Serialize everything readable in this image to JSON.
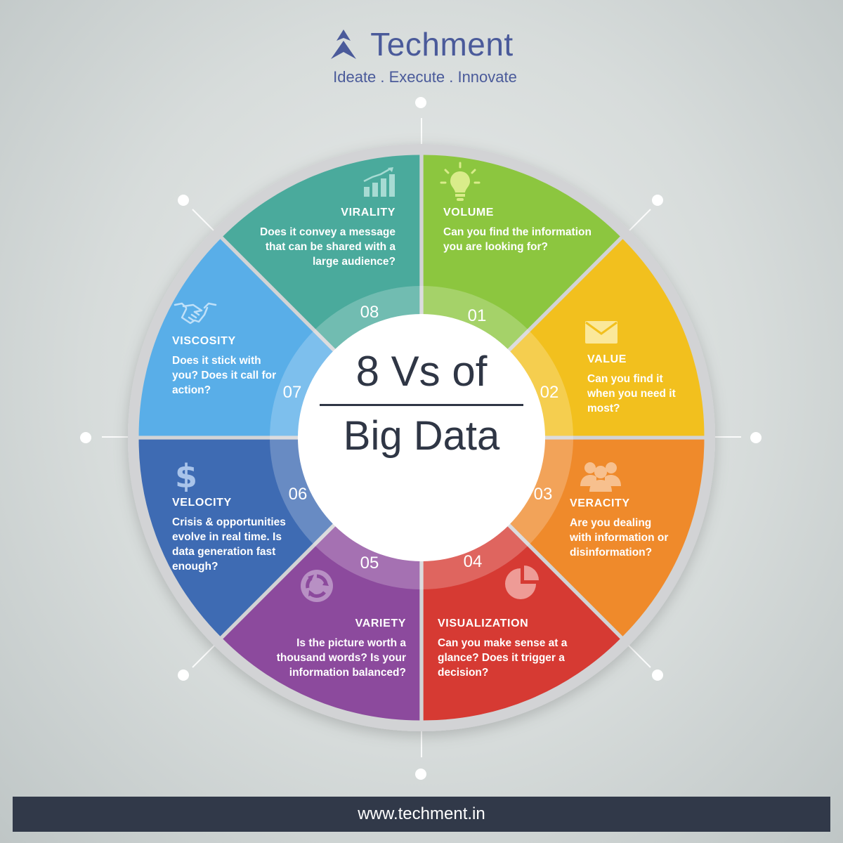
{
  "brand": {
    "name": "Techment",
    "tagline": "Ideate . Execute . Innovate"
  },
  "center": {
    "line1": "8 Vs of",
    "line2": "Big Data"
  },
  "segments": [
    {
      "number": "01",
      "title": "VOLUME",
      "description": "Can you find the information you are looking for?",
      "color": "#8cc63f",
      "icon": "lightbulb-icon"
    },
    {
      "number": "02",
      "title": "VALUE",
      "description": "Can you find it when you need it most?",
      "color": "#f2c01e",
      "icon": "envelope-icon"
    },
    {
      "number": "03",
      "title": "VERACITY",
      "description": "Are you dealing with information or disinformation?",
      "color": "#ef8a2b",
      "icon": "people-icon"
    },
    {
      "number": "04",
      "title": "VISUALIZATION",
      "description": "Can you make sense at a glance? Does it trigger a decision?",
      "color": "#d63a33",
      "icon": "pie-chart-icon"
    },
    {
      "number": "05",
      "title": "VARIETY",
      "description": "Is the picture worth a thousand words? Is your information balanced?",
      "color": "#8c4a9d",
      "icon": "recycle-icon"
    },
    {
      "number": "06",
      "title": "VELOCITY",
      "description": "Crisis & opportunities evolve in real time. Is data generation fast enough?",
      "color": "#3e6bb3",
      "icon": "dollar-icon"
    },
    {
      "number": "07",
      "title": "VISCOSITY",
      "description": "Does it stick with you? Does it call for action?",
      "color": "#59aee8",
      "icon": "handshake-icon"
    },
    {
      "number": "08",
      "title": "VIRALITY",
      "description": "Does it convey a message that can be shared with a large audience?",
      "color": "#4aaa9c",
      "icon": "growth-chart-icon"
    }
  ],
  "footer": {
    "url": "www.techment.in"
  },
  "colors": {
    "background": "#d7dcdb",
    "ring": "#d2d3d5",
    "brand": "#4a5a9a",
    "dark": "#313949"
  }
}
